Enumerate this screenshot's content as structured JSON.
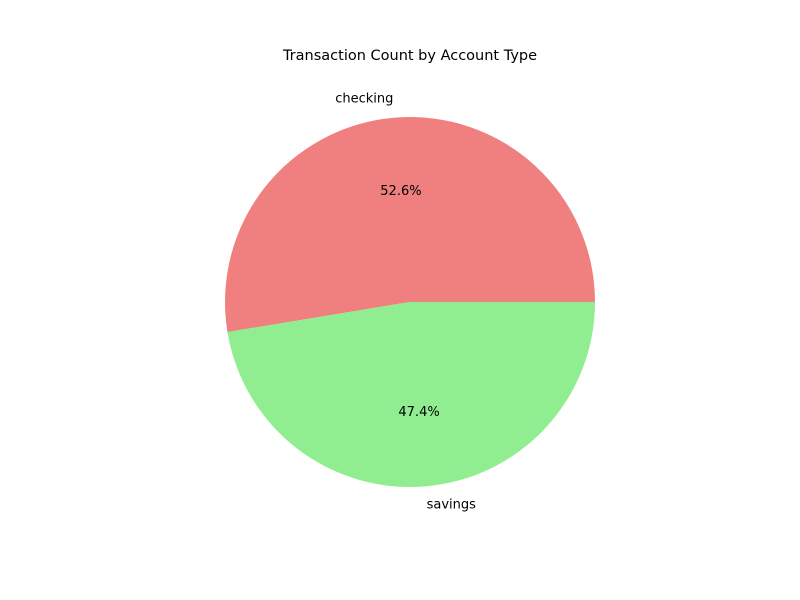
{
  "chart_data": {
    "type": "pie",
    "title": "Transaction Count by Account Type",
    "categories": [
      "checking",
      "savings"
    ],
    "values": [
      52.6,
      47.4
    ],
    "value_labels": [
      "52.6%",
      "47.4%"
    ],
    "colors": [
      "#f08080",
      "#90ee90"
    ],
    "start_angle_deg": 0,
    "direction": "counterclockwise",
    "legend": "none"
  }
}
